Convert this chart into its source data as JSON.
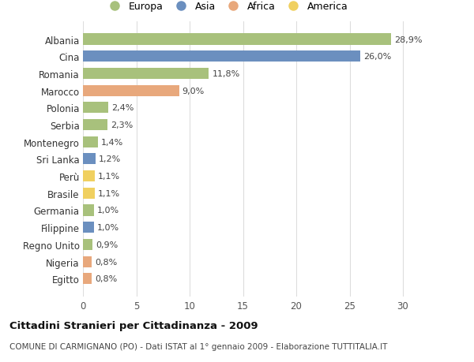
{
  "categories": [
    "Albania",
    "Cina",
    "Romania",
    "Marocco",
    "Polonia",
    "Serbia",
    "Montenegro",
    "Sri Lanka",
    "Perù",
    "Brasile",
    "Germania",
    "Filippine",
    "Regno Unito",
    "Nigeria",
    "Egitto"
  ],
  "values": [
    28.9,
    26.0,
    11.8,
    9.0,
    2.4,
    2.3,
    1.4,
    1.2,
    1.1,
    1.1,
    1.0,
    1.0,
    0.9,
    0.8,
    0.8
  ],
  "labels": [
    "28,9%",
    "26,0%",
    "11,8%",
    "9,0%",
    "2,4%",
    "2,3%",
    "1,4%",
    "1,2%",
    "1,1%",
    "1,1%",
    "1,0%",
    "1,0%",
    "0,9%",
    "0,8%",
    "0,8%"
  ],
  "continent": [
    "Europa",
    "Asia",
    "Europa",
    "Africa",
    "Europa",
    "Europa",
    "Europa",
    "Asia",
    "America",
    "America",
    "Europa",
    "Asia",
    "Europa",
    "Africa",
    "Africa"
  ],
  "colors": {
    "Europa": "#a8c17c",
    "Asia": "#6b8fbf",
    "Africa": "#e8a87c",
    "America": "#f0d060"
  },
  "title": "Cittadini Stranieri per Cittadinanza - 2009",
  "subtitle": "COMUNE DI CARMIGNANO (PO) - Dati ISTAT al 1° gennaio 2009 - Elaborazione TUTTITALIA.IT",
  "xlim": [
    0,
    32
  ],
  "xticks": [
    0,
    5,
    10,
    15,
    20,
    25,
    30
  ],
  "background_color": "#ffffff",
  "grid_color": "#dddddd"
}
